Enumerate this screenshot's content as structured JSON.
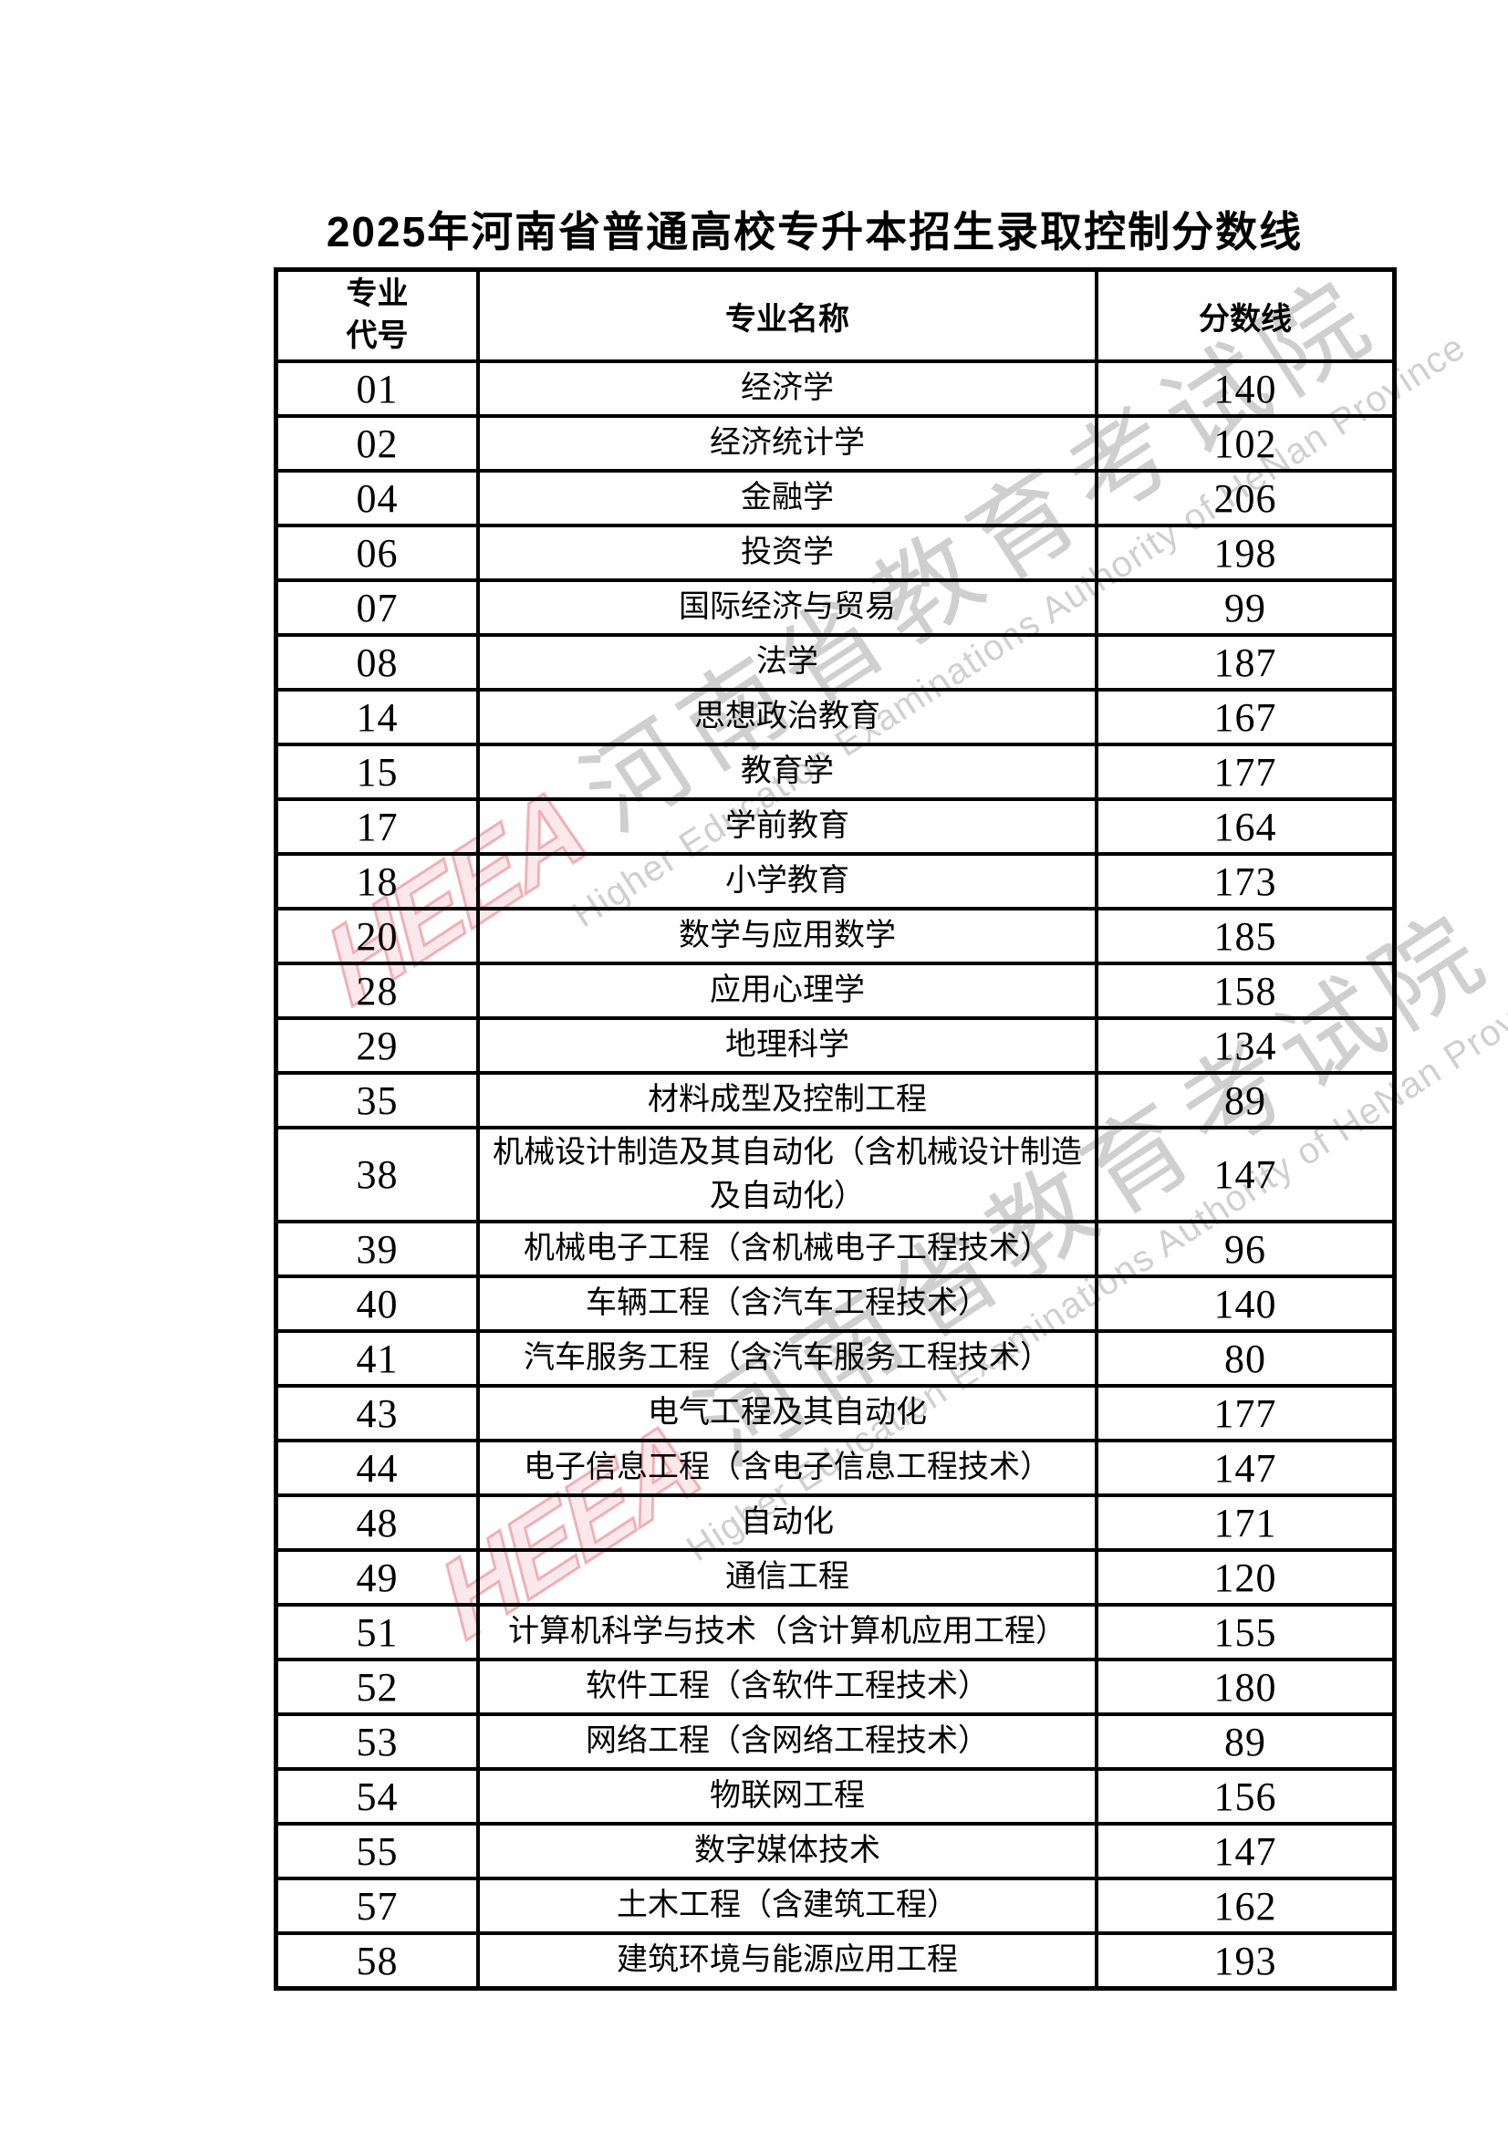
{
  "page": {
    "title": "2025年河南省普通高校专升本招生录取控制分数线"
  },
  "table": {
    "headers": {
      "code": "专业\n代号",
      "name": "专业名称",
      "score": "分数线"
    },
    "rows": [
      {
        "code": "01",
        "name": "经济学",
        "score": "140"
      },
      {
        "code": "02",
        "name": "经济统计学",
        "score": "102"
      },
      {
        "code": "04",
        "name": "金融学",
        "score": "206"
      },
      {
        "code": "06",
        "name": "投资学",
        "score": "198"
      },
      {
        "code": "07",
        "name": "国际经济与贸易",
        "score": "99"
      },
      {
        "code": "08",
        "name": "法学",
        "score": "187"
      },
      {
        "code": "14",
        "name": "思想政治教育",
        "score": "167"
      },
      {
        "code": "15",
        "name": "教育学",
        "score": "177"
      },
      {
        "code": "17",
        "name": "学前教育",
        "score": "164"
      },
      {
        "code": "18",
        "name": "小学教育",
        "score": "173"
      },
      {
        "code": "20",
        "name": "数学与应用数学",
        "score": "185"
      },
      {
        "code": "28",
        "name": "应用心理学",
        "score": "158"
      },
      {
        "code": "29",
        "name": "地理科学",
        "score": "134"
      },
      {
        "code": "35",
        "name": "材料成型及控制工程",
        "score": "89"
      },
      {
        "code": "38",
        "name": "机械设计制造及其自动化（含机械设计制造及自动化）",
        "score": "147"
      },
      {
        "code": "39",
        "name": "机械电子工程（含机械电子工程技术）",
        "score": "96"
      },
      {
        "code": "40",
        "name": "车辆工程（含汽车工程技术）",
        "score": "140"
      },
      {
        "code": "41",
        "name": "汽车服务工程（含汽车服务工程技术）",
        "score": "80"
      },
      {
        "code": "43",
        "name": "电气工程及其自动化",
        "score": "177"
      },
      {
        "code": "44",
        "name": "电子信息工程（含电子信息工程技术）",
        "score": "147"
      },
      {
        "code": "48",
        "name": "自动化",
        "score": "171"
      },
      {
        "code": "49",
        "name": "通信工程",
        "score": "120"
      },
      {
        "code": "51",
        "name": "计算机科学与技术（含计算机应用工程）",
        "score": "155"
      },
      {
        "code": "52",
        "name": "软件工程（含软件工程技术）",
        "score": "180"
      },
      {
        "code": "53",
        "name": "网络工程（含网络工程技术）",
        "score": "89"
      },
      {
        "code": "54",
        "name": "物联网工程",
        "score": "156"
      },
      {
        "code": "55",
        "name": "数字媒体技术",
        "score": "147"
      },
      {
        "code": "57",
        "name": "土木工程（含建筑工程）",
        "score": "162"
      },
      {
        "code": "58",
        "name": "建筑环境与能源应用工程",
        "score": "193"
      }
    ]
  },
  "watermark": {
    "logo": "HEEA",
    "cn": "河南省教育考试院",
    "en": "Higher Education Examinations Authority of HeNan Province",
    "gray_color": "#8c8c8c",
    "red_color": "#de606a"
  }
}
